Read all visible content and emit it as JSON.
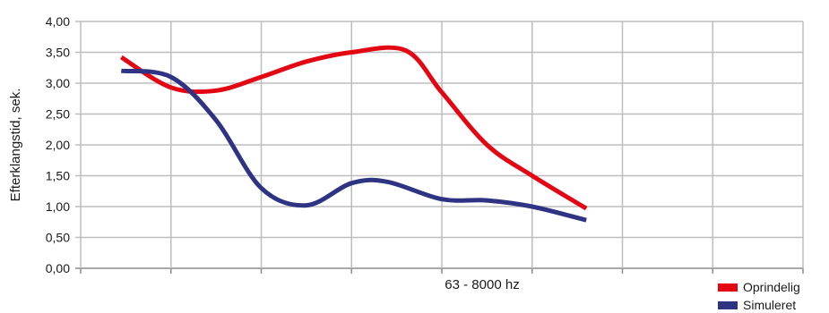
{
  "chart_data": {
    "type": "line",
    "title": "",
    "xlabel": "63 - 8000 hz",
    "ylabel": "Efterklangstid, sek.",
    "ylim": [
      0,
      4
    ],
    "yticks": [
      "0,00",
      "0,50",
      "1,00",
      "1,50",
      "2,00",
      "2,50",
      "3,00",
      "3,50",
      "4,00"
    ],
    "x_count": 8,
    "grid": true,
    "legend_position": "bottom-right",
    "series": [
      {
        "name": "Oprindelig",
        "color": "#e30613",
        "values": [
          3.42,
          2.93,
          2.88,
          3.1,
          3.35,
          3.5,
          3.53,
          2.85,
          2.0,
          1.5,
          0.97
        ],
        "x": [
          0.45,
          1.0,
          1.5,
          2.0,
          2.5,
          3.0,
          3.6,
          4.0,
          4.5,
          5.0,
          5.6
        ]
      },
      {
        "name": "Simuleret",
        "color": "#2e3383",
        "values": [
          3.2,
          3.1,
          2.4,
          1.3,
          1.02,
          1.38,
          1.4,
          1.12,
          1.1,
          1.0,
          0.78
        ],
        "x": [
          0.45,
          1.0,
          1.5,
          2.0,
          2.5,
          3.0,
          3.4,
          4.0,
          4.5,
          5.0,
          5.6
        ]
      }
    ]
  }
}
